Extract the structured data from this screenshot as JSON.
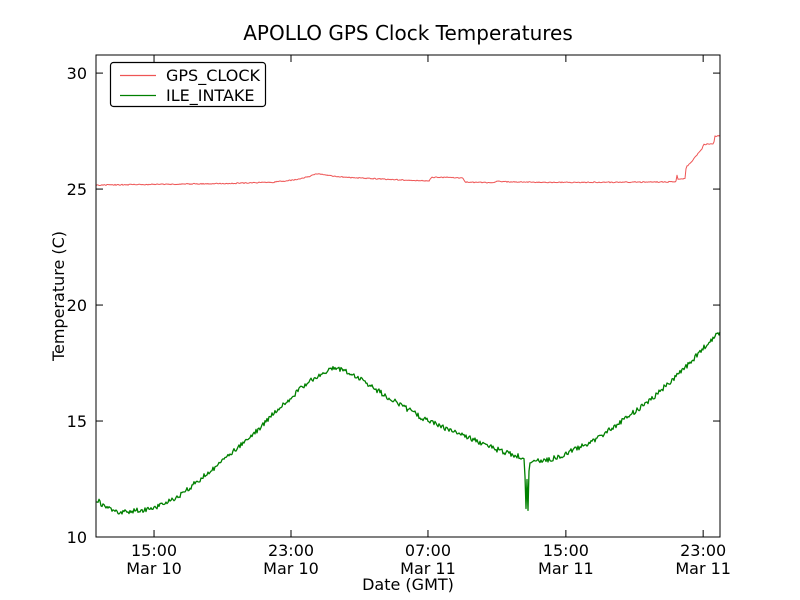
{
  "chart_data": {
    "type": "line",
    "title": "APOLLO GPS Clock Temperatures",
    "xlabel": "Date (GMT)",
    "ylabel": "Temperature (C)",
    "ylim": [
      10,
      30.78
    ],
    "grid": false,
    "legend_position": "upper left",
    "frame_color": "#000000",
    "background_color": "#ffffff",
    "y_ticks": [
      {
        "value": 10,
        "label": "10"
      },
      {
        "value": 15,
        "label": "15"
      },
      {
        "value": 20,
        "label": "20"
      },
      {
        "value": 25,
        "label": "25"
      },
      {
        "value": 30,
        "label": "30"
      }
    ],
    "x_ticks": [
      {
        "pos": 0.093,
        "time": "15:00",
        "date": "Mar 10"
      },
      {
        "pos": 0.3125,
        "time": "23:00",
        "date": "Mar 10"
      },
      {
        "pos": 0.532,
        "time": "07:00",
        "date": "Mar 11"
      },
      {
        "pos": 0.753,
        "time": "15:00",
        "date": "Mar 11"
      },
      {
        "pos": 0.973,
        "time": "23:00",
        "date": "Mar 11"
      }
    ],
    "series": [
      {
        "name": "GPS_CLOCK",
        "color": "#ee5555",
        "width": 1,
        "noise": 0.022,
        "seed": 91,
        "keypoints": [
          [
            0.0,
            25.17
          ],
          [
            0.06,
            25.19
          ],
          [
            0.12,
            25.21
          ],
          [
            0.18,
            25.23
          ],
          [
            0.24,
            25.26
          ],
          [
            0.285,
            25.3
          ],
          [
            0.32,
            25.4
          ],
          [
            0.342,
            25.55
          ],
          [
            0.355,
            25.66
          ],
          [
            0.368,
            25.6
          ],
          [
            0.385,
            25.54
          ],
          [
            0.42,
            25.48
          ],
          [
            0.46,
            25.43
          ],
          [
            0.5,
            25.38
          ],
          [
            0.534,
            25.35
          ],
          [
            0.538,
            25.51
          ],
          [
            0.56,
            25.5
          ],
          [
            0.588,
            25.48
          ],
          [
            0.592,
            25.3
          ],
          [
            0.62,
            25.28
          ],
          [
            0.64,
            25.28
          ],
          [
            0.643,
            25.34
          ],
          [
            0.66,
            25.31
          ],
          [
            0.72,
            25.29
          ],
          [
            0.8,
            25.29
          ],
          [
            0.87,
            25.3
          ],
          [
            0.92,
            25.31
          ],
          [
            0.9295,
            25.33
          ],
          [
            0.9308,
            25.64
          ],
          [
            0.932,
            25.4
          ],
          [
            0.938,
            25.43
          ],
          [
            0.944,
            25.46
          ],
          [
            0.9458,
            25.97
          ],
          [
            0.952,
            26.1
          ],
          [
            0.962,
            26.45
          ],
          [
            0.972,
            26.75
          ],
          [
            0.9735,
            26.92
          ],
          [
            0.985,
            26.95
          ],
          [
            0.99,
            26.97
          ],
          [
            0.9915,
            27.27
          ],
          [
            1.0,
            27.31
          ]
        ]
      },
      {
        "name": "ILE_INTAKE",
        "color": "#008000",
        "width": 1.3,
        "noise": 0.11,
        "seed": 37,
        "keypoints": [
          [
            0.0,
            11.62
          ],
          [
            0.012,
            11.36
          ],
          [
            0.03,
            11.05
          ],
          [
            0.05,
            11.1
          ],
          [
            0.075,
            11.15
          ],
          [
            0.095,
            11.28
          ],
          [
            0.115,
            11.5
          ],
          [
            0.14,
            11.9
          ],
          [
            0.167,
            12.5
          ],
          [
            0.195,
            13.1
          ],
          [
            0.215,
            13.55
          ],
          [
            0.24,
            14.15
          ],
          [
            0.263,
            14.7
          ],
          [
            0.285,
            15.35
          ],
          [
            0.31,
            15.95
          ],
          [
            0.33,
            16.45
          ],
          [
            0.345,
            16.75
          ],
          [
            0.36,
            17.0
          ],
          [
            0.372,
            17.2
          ],
          [
            0.383,
            17.32
          ],
          [
            0.39,
            17.25
          ],
          [
            0.4,
            17.15
          ],
          [
            0.41,
            17.05
          ],
          [
            0.42,
            16.9
          ],
          [
            0.435,
            16.6
          ],
          [
            0.455,
            16.25
          ],
          [
            0.475,
            15.9
          ],
          [
            0.5,
            15.5
          ],
          [
            0.525,
            15.1
          ],
          [
            0.55,
            14.8
          ],
          [
            0.575,
            14.5
          ],
          [
            0.6,
            14.25
          ],
          [
            0.625,
            13.95
          ],
          [
            0.65,
            13.7
          ],
          [
            0.668,
            13.55
          ],
          [
            0.683,
            13.45
          ],
          [
            0.6865,
            13.35
          ],
          [
            0.6885,
            12.0
          ],
          [
            0.6895,
            10.65
          ],
          [
            0.6908,
            12.7
          ],
          [
            0.692,
            10.85
          ],
          [
            0.6938,
            12.9
          ],
          [
            0.6955,
            13.25
          ],
          [
            0.7,
            13.3
          ],
          [
            0.72,
            13.28
          ],
          [
            0.745,
            13.5
          ],
          [
            0.77,
            13.8
          ],
          [
            0.8,
            14.2
          ],
          [
            0.83,
            14.75
          ],
          [
            0.86,
            15.35
          ],
          [
            0.89,
            15.95
          ],
          [
            0.92,
            16.7
          ],
          [
            0.95,
            17.45
          ],
          [
            0.975,
            18.2
          ],
          [
            0.99,
            18.6
          ],
          [
            1.0,
            18.85
          ]
        ]
      }
    ]
  }
}
